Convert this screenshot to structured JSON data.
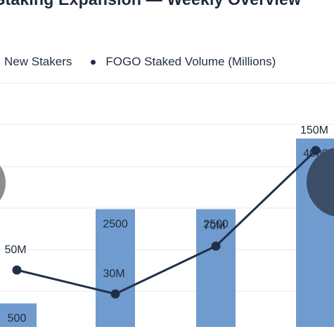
{
  "chart_data": {
    "type": "bar+line",
    "title": "Staking Expansion — Weekly Overview",
    "categories": [
      "",
      "",
      "",
      ""
    ],
    "series": [
      {
        "name": "New Stakers",
        "type": "bar",
        "color": "#6f9bcf",
        "values": [
          500,
          2500,
          2500,
          4000
        ],
        "labels": [
          "500",
          "2500",
          "2500",
          "4000"
        ]
      },
      {
        "name": "FOGO Staked Volume (Millions)",
        "type": "line",
        "color": "#223047",
        "values": [
          50,
          30,
          70,
          150
        ],
        "labels": [
          "50M",
          "30M",
          "70M",
          "150M"
        ]
      }
    ],
    "grid": true,
    "legend_position": "top-left"
  }
}
